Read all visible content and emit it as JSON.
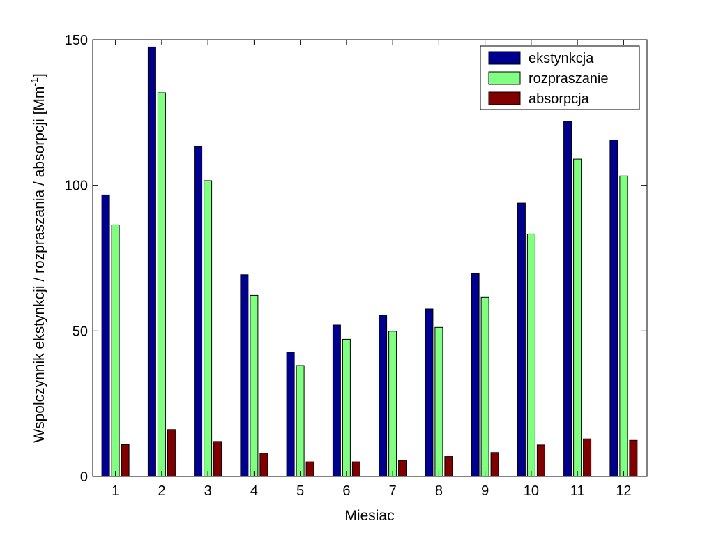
{
  "chart_data": {
    "type": "bar",
    "title": "",
    "xlabel": "Miesiac",
    "ylabel": "Wspolczynnik ekstynkcji / rozpraszania / absorpcji [Mm",
    "ylabel_sup": "-1",
    "ylabel_end": "]",
    "categories": [
      "1",
      "2",
      "3",
      "4",
      "5",
      "6",
      "7",
      "8",
      "9",
      "10",
      "11",
      "12"
    ],
    "ylim": [
      0,
      150
    ],
    "yticks": [
      0,
      50,
      100,
      150
    ],
    "grid": false,
    "legend_position": "top-right",
    "series": [
      {
        "name": "ekstynkcja",
        "color": "#00008f",
        "values": [
          96.7,
          147.5,
          113.3,
          69.3,
          42.7,
          52.0,
          55.3,
          57.5,
          69.6,
          93.9,
          121.9,
          115.6
        ]
      },
      {
        "name": "rozpraszanie",
        "color": "#80ff80",
        "values": [
          86.4,
          131.8,
          101.6,
          62.2,
          38.1,
          47.1,
          49.9,
          51.2,
          61.5,
          83.3,
          109.0,
          103.2
        ]
      },
      {
        "name": "absorpcja",
        "color": "#800000",
        "values": [
          10.9,
          16.1,
          12.0,
          8.0,
          5.0,
          5.0,
          5.5,
          6.8,
          8.2,
          10.8,
          12.9,
          12.4
        ]
      }
    ]
  }
}
